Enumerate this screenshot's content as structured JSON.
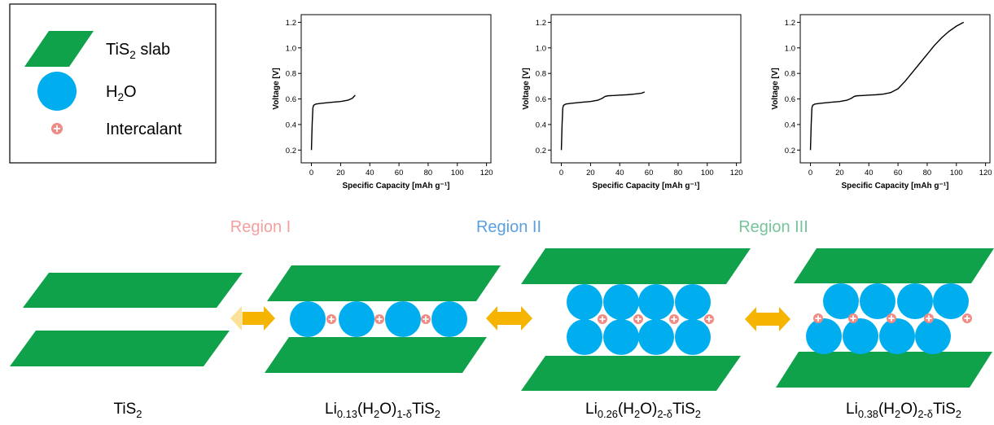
{
  "legend": [
    {
      "parts": [
        {
          "t": "TiS"
        },
        {
          "sub": "2"
        },
        {
          "t": " slab"
        }
      ]
    },
    {
      "parts": [
        {
          "t": "H"
        },
        {
          "sub": "2"
        },
        {
          "t": "O"
        }
      ]
    },
    {
      "parts": [
        {
          "t": "Intercalant"
        }
      ]
    }
  ],
  "regions": [
    "Region I",
    "Region II",
    "Region III"
  ],
  "structures": [
    {
      "parts": [
        {
          "t": "TiS"
        },
        {
          "sub": "2"
        }
      ]
    },
    {
      "parts": [
        {
          "t": "Li"
        },
        {
          "sub": "0.13"
        },
        {
          "t": "(H"
        },
        {
          "sub": "2"
        },
        {
          "t": "O)"
        },
        {
          "sub": "1-δ"
        },
        {
          "t": "TiS"
        },
        {
          "sub": "2"
        }
      ]
    },
    {
      "parts": [
        {
          "t": "Li"
        },
        {
          "sub": "0.26"
        },
        {
          "t": "(H"
        },
        {
          "sub": "2"
        },
        {
          "t": "O)"
        },
        {
          "sub": "2-δ"
        },
        {
          "t": "TiS"
        },
        {
          "sub": "2"
        }
      ]
    },
    {
      "parts": [
        {
          "t": "Li"
        },
        {
          "sub": "0.38"
        },
        {
          "t": "(H"
        },
        {
          "sub": "2"
        },
        {
          "t": "O)"
        },
        {
          "sub": "2-δ"
        },
        {
          "t": "TiS"
        },
        {
          "sub": "2"
        }
      ]
    }
  ],
  "chart_data": [
    {
      "type": "line",
      "x_label": "Specific Capacity [mAh g⁻¹]",
      "y_label": "Voltage [V]",
      "color": "#000000",
      "x": [
        0,
        0.5,
        1,
        1.5,
        3,
        6,
        10,
        15,
        20,
        25,
        28,
        30
      ],
      "values": [
        0.2,
        0.4,
        0.53,
        0.55,
        0.56,
        0.565,
        0.57,
        0.575,
        0.58,
        0.59,
        0.605,
        0.63
      ],
      "xlim": [
        -7,
        123
      ],
      "ylim": [
        0.1,
        1.26
      ],
      "xticks": [
        0,
        20,
        40,
        60,
        80,
        100,
        120
      ],
      "yticks": [
        0.2,
        0.4,
        0.6,
        0.8,
        {
          "value": 1,
          "label": "1.0"
        },
        1.2
      ]
    },
    {
      "type": "line",
      "x_label": "Specific Capacity [mAh g⁻¹]",
      "y_label": "Voltage [V]",
      "color": "#000000",
      "x": [
        0,
        0.5,
        1,
        1.5,
        3,
        6,
        10,
        15,
        20,
        25,
        28,
        30,
        32,
        36,
        40,
        45,
        50,
        55,
        57
      ],
      "values": [
        0.2,
        0.4,
        0.53,
        0.55,
        0.56,
        0.565,
        0.57,
        0.575,
        0.58,
        0.59,
        0.605,
        0.62,
        0.625,
        0.627,
        0.63,
        0.633,
        0.638,
        0.645,
        0.655
      ],
      "xlim": [
        -7,
        123
      ],
      "ylim": [
        0.1,
        1.26
      ],
      "xticks": [
        0,
        20,
        40,
        60,
        80,
        100,
        120
      ],
      "yticks": [
        0.2,
        0.4,
        0.6,
        0.8,
        {
          "value": 1,
          "label": "1.0"
        },
        1.2
      ]
    },
    {
      "type": "line",
      "x_label": "Specific Capacity [mAh g⁻¹]",
      "y_label": "Voltage [V]",
      "color": "#000000",
      "x": [
        0,
        0.5,
        1,
        1.5,
        3,
        6,
        10,
        15,
        20,
        25,
        28,
        30,
        32,
        36,
        40,
        45,
        50,
        55,
        60,
        65,
        70,
        75,
        80,
        85,
        90,
        95,
        100,
        105
      ],
      "values": [
        0.2,
        0.4,
        0.53,
        0.55,
        0.56,
        0.565,
        0.57,
        0.575,
        0.58,
        0.59,
        0.605,
        0.62,
        0.625,
        0.627,
        0.63,
        0.633,
        0.638,
        0.65,
        0.68,
        0.74,
        0.81,
        0.88,
        0.95,
        1.02,
        1.08,
        1.13,
        1.17,
        1.2
      ],
      "xlim": [
        -7,
        123
      ],
      "ylim": [
        0.1,
        1.26
      ],
      "xticks": [
        0,
        20,
        40,
        60,
        80,
        100,
        120
      ],
      "yticks": [
        0.2,
        0.4,
        0.6,
        0.8,
        {
          "value": 1,
          "label": "1.0"
        },
        1.2
      ]
    }
  ]
}
